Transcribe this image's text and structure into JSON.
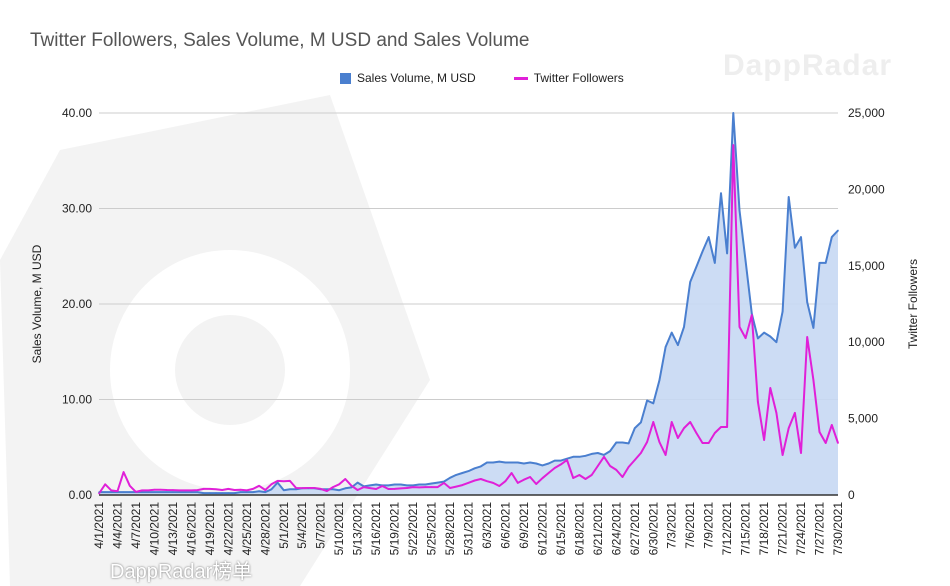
{
  "title": "Twitter Followers, Sales Volume, M USD and Sales Volume",
  "watermarks": [
    "DappRadar",
    "DappRadar榜单"
  ],
  "chart_data": {
    "type": "line",
    "title": "Twitter Followers, Sales Volume, M USD and Sales Volume",
    "legend_position": "top",
    "grid": true,
    "xlabel": "",
    "ylabel": "Sales Volume, M USD",
    "y2label": "Twitter Followers",
    "ylim": [
      0,
      40
    ],
    "y2lim": [
      0,
      25000
    ],
    "yticks": [
      "0.00",
      "10.00",
      "20.00",
      "30.00",
      "40.00"
    ],
    "y2ticks": [
      "0",
      "5,000",
      "10,000",
      "15,000",
      "20,000",
      "25,000"
    ],
    "categories": [
      "4/1/2021",
      "4/2/2021",
      "4/3/2021",
      "4/4/2021",
      "4/5/2021",
      "4/6/2021",
      "4/7/2021",
      "4/8/2021",
      "4/9/2021",
      "4/10/2021",
      "4/11/2021",
      "4/12/2021",
      "4/13/2021",
      "4/14/2021",
      "4/15/2021",
      "4/16/2021",
      "4/17/2021",
      "4/18/2021",
      "4/19/2021",
      "4/20/2021",
      "4/21/2021",
      "4/22/2021",
      "4/23/2021",
      "4/24/2021",
      "4/25/2021",
      "4/26/2021",
      "4/27/2021",
      "4/28/2021",
      "4/29/2021",
      "4/30/2021",
      "5/1/2021",
      "5/2/2021",
      "5/3/2021",
      "5/4/2021",
      "5/5/2021",
      "5/6/2021",
      "5/7/2021",
      "5/8/2021",
      "5/9/2021",
      "5/10/2021",
      "5/11/2021",
      "5/12/2021",
      "5/13/2021",
      "5/14/2021",
      "5/15/2021",
      "5/16/2021",
      "5/17/2021",
      "5/18/2021",
      "5/19/2021",
      "5/20/2021",
      "5/21/2021",
      "5/22/2021",
      "5/23/2021",
      "5/24/2021",
      "5/25/2021",
      "5/26/2021",
      "5/27/2021",
      "5/28/2021",
      "5/29/2021",
      "5/30/2021",
      "5/31/2021",
      "6/1/2021",
      "6/2/2021",
      "6/3/2021",
      "6/4/2021",
      "6/5/2021",
      "6/6/2021",
      "6/7/2021",
      "6/8/2021",
      "6/9/2021",
      "6/10/2021",
      "6/11/2021",
      "6/12/2021",
      "6/13/2021",
      "6/14/2021",
      "6/15/2021",
      "6/16/2021",
      "6/17/2021",
      "6/18/2021",
      "6/19/2021",
      "6/20/2021",
      "6/21/2021",
      "6/22/2021",
      "6/23/2021",
      "6/24/2021",
      "6/25/2021",
      "6/26/2021",
      "6/27/2021",
      "6/28/2021",
      "6/29/2021",
      "6/30/2021",
      "7/1/2021",
      "7/2/2021",
      "7/3/2021",
      "7/4/2021",
      "7/5/2021",
      "7/6/2021",
      "7/7/2021",
      "7/8/2021",
      "7/9/2021",
      "7/10/2021",
      "7/11/2021",
      "7/12/2021",
      "7/13/2021",
      "7/14/2021",
      "7/15/2021",
      "7/16/2021",
      "7/17/2021",
      "7/18/2021",
      "7/19/2021",
      "7/20/2021",
      "7/21/2021",
      "7/22/2021",
      "7/23/2021",
      "7/24/2021",
      "7/25/2021",
      "7/26/2021",
      "7/27/2021",
      "7/28/2021",
      "7/29/2021",
      "7/30/2021"
    ],
    "series": [
      {
        "name": "Sales Volume, M USD",
        "axis": "left",
        "style": "area",
        "color": "#4a7fcf",
        "fill": "#c6d8f3",
        "values": [
          0.3,
          0.3,
          0.3,
          0.3,
          0.3,
          0.3,
          0.3,
          0.3,
          0.3,
          0.3,
          0.3,
          0.3,
          0.3,
          0.3,
          0.3,
          0.3,
          0.3,
          0.2,
          0.2,
          0.2,
          0.2,
          0.2,
          0.2,
          0.3,
          0.3,
          0.3,
          0.4,
          0.3,
          0.6,
          1.3,
          0.5,
          0.6,
          0.6,
          0.7,
          0.7,
          0.7,
          0.6,
          0.6,
          0.6,
          0.5,
          0.7,
          0.8,
          1.3,
          0.9,
          1.0,
          1.1,
          1.0,
          1.0,
          1.1,
          1.1,
          1.0,
          1.0,
          1.1,
          1.1,
          1.2,
          1.3,
          1.4,
          1.8,
          2.1,
          2.3,
          2.5,
          2.8,
          3.0,
          3.4,
          3.4,
          3.5,
          3.4,
          3.4,
          3.4,
          3.3,
          3.4,
          3.3,
          3.1,
          3.3,
          3.6,
          3.6,
          3.8,
          4.0,
          4.0,
          4.1,
          4.3,
          4.4,
          4.2,
          4.6,
          5.5,
          5.5,
          5.4,
          7.0,
          7.6,
          9.9,
          9.6,
          12.0,
          15.5,
          17.0,
          15.7,
          17.6,
          22.3,
          23.9,
          25.5,
          27.0,
          24.3,
          31.6,
          25.3,
          40.0,
          29.8,
          24.5,
          19.0,
          16.4,
          17.0,
          16.6,
          16.0,
          19.2,
          31.2,
          25.9,
          27.0,
          20.2,
          17.5,
          24.3,
          24.3,
          27.0,
          27.7
        ]
      },
      {
        "name": "Twitter Followers",
        "axis": "right",
        "style": "line",
        "color": "#e020d8",
        "values": [
          100,
          700,
          300,
          250,
          1500,
          600,
          200,
          300,
          300,
          350,
          350,
          330,
          320,
          300,
          300,
          300,
          320,
          400,
          400,
          380,
          330,
          400,
          330,
          350,
          300,
          400,
          600,
          330,
          700,
          920,
          900,
          920,
          460,
          450,
          460,
          460,
          400,
          260,
          520,
          700,
          1050,
          600,
          330,
          520,
          450,
          390,
          590,
          390,
          400,
          430,
          460,
          520,
          500,
          520,
          520,
          520,
          790,
          460,
          550,
          650,
          800,
          950,
          1050,
          900,
          790,
          590,
          900,
          1440,
          790,
          1000,
          1180,
          720,
          1100,
          1440,
          1770,
          2000,
          2290,
          1110,
          1310,
          1050,
          1310,
          1900,
          2500,
          1900,
          1640,
          1180,
          1830,
          2290,
          2750,
          3470,
          4780,
          3470,
          2620,
          4780,
          3730,
          4380,
          4780,
          4060,
          3400,
          3400,
          4060,
          4450,
          4450,
          22900,
          11000,
          10270,
          11780,
          6090,
          3600,
          7000,
          5370,
          2620,
          4380,
          5370,
          2750,
          10340,
          7530,
          4120,
          3400,
          4580,
          3400
        ]
      }
    ]
  }
}
